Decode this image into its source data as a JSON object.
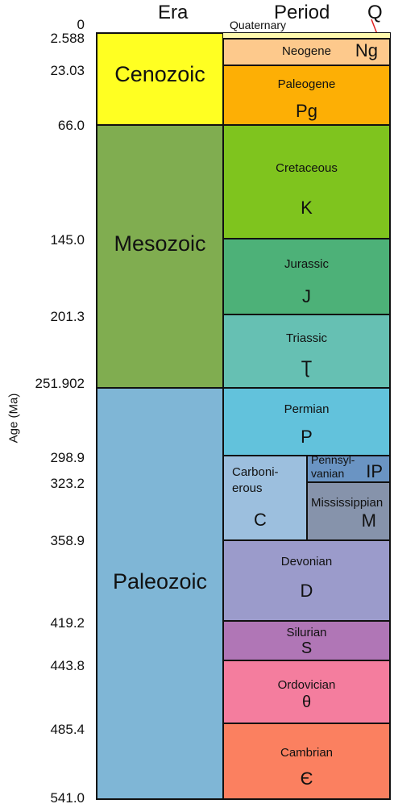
{
  "headers": {
    "era": "Era",
    "period": "Period",
    "quaternary_symbol": "Q"
  },
  "axis_label": "Age (Ma)",
  "ticks": [
    "0",
    "2.588",
    "23.03",
    "66.0",
    "145.0",
    "201.3",
    "251.902",
    "298.9",
    "323.2",
    "358.9",
    "419.2",
    "443.8",
    "485.4",
    "541.0"
  ],
  "eras": [
    {
      "name": "Cenozoic",
      "color": "#ffff22"
    },
    {
      "name": "Mesozoic",
      "color": "#80ad50"
    },
    {
      "name": "Paleozoic",
      "color": "#7fb6d6"
    }
  ],
  "periods": [
    {
      "name": "Quaternary",
      "symbol": "",
      "color": "#fff9ae"
    },
    {
      "name": "Neogene",
      "symbol": "Ng",
      "color": "#fdc98c"
    },
    {
      "name": "Paleogene",
      "symbol": "Pg",
      "color": "#fdaf05"
    },
    {
      "name": "Cretaceous",
      "symbol": "K",
      "color": "#7fc41e"
    },
    {
      "name": "Jurassic",
      "symbol": "J",
      "color": "#4db178"
    },
    {
      "name": "Triassic",
      "symbol": "Ʈ",
      "color": "#66c0b3"
    },
    {
      "name": "Permian",
      "symbol": "P",
      "color": "#62c2dc"
    },
    {
      "name": "Carboni-\nerous",
      "symbol": "C",
      "color": "#9cbfde"
    },
    {
      "name": "Devonian",
      "symbol": "D",
      "color": "#9b9bcb"
    },
    {
      "name": "Silurian",
      "symbol": "S",
      "color": "#b076b6"
    },
    {
      "name": "Ordovician",
      "symbol": "θ",
      "color": "#f47d9e"
    },
    {
      "name": "Cambrian",
      "symbol": "Є",
      "color": "#fb8060"
    }
  ],
  "subperiods": [
    {
      "name": "Pennsyl-\nvanian",
      "symbol": "IP",
      "color": "#6a94c3"
    },
    {
      "name": "Mississippian",
      "symbol": "M",
      "color": "#8693ab"
    }
  ]
}
